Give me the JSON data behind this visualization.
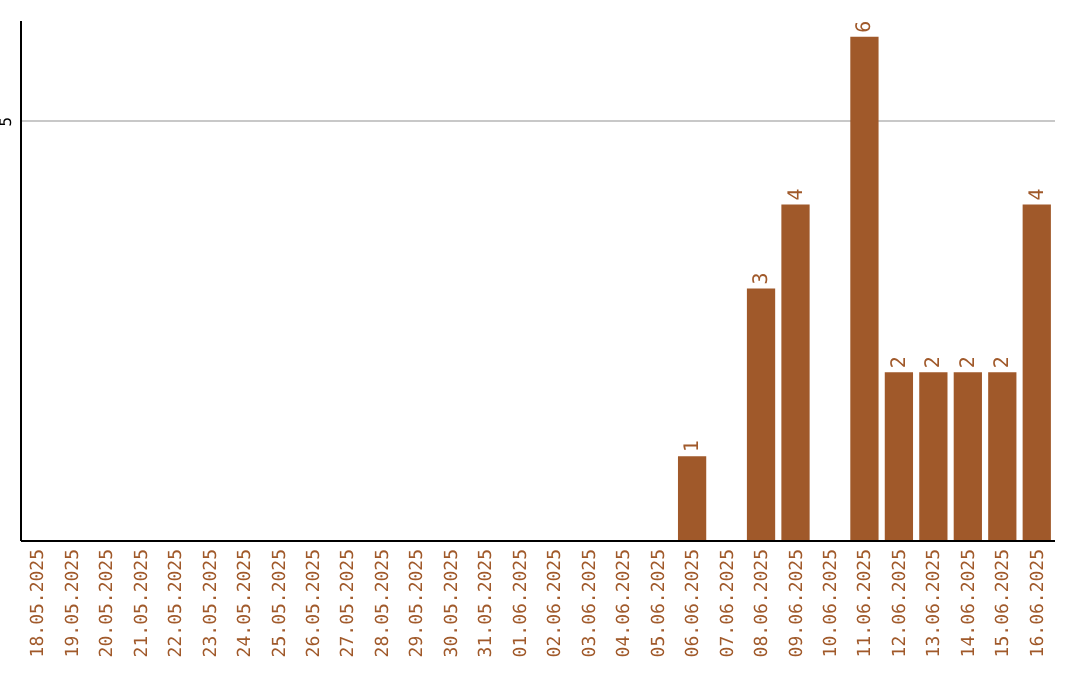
{
  "chart_data": {
    "type": "bar",
    "categories": [
      "18.05.2025",
      "19.05.2025",
      "20.05.2025",
      "21.05.2025",
      "22.05.2025",
      "23.05.2025",
      "24.05.2025",
      "25.05.2025",
      "26.05.2025",
      "27.05.2025",
      "28.05.2025",
      "29.05.2025",
      "30.05.2025",
      "31.05.2025",
      "01.06.2025",
      "02.06.2025",
      "03.06.2025",
      "04.06.2025",
      "05.06.2025",
      "06.06.2025",
      "07.06.2025",
      "08.06.2025",
      "09.06.2025",
      "10.06.2025",
      "11.06.2025",
      "12.06.2025",
      "13.06.2025",
      "14.06.2025",
      "15.06.2025",
      "16.06.2025"
    ],
    "values": [
      null,
      null,
      null,
      null,
      null,
      null,
      null,
      null,
      null,
      null,
      null,
      null,
      null,
      null,
      null,
      null,
      null,
      null,
      null,
      1,
      null,
      3,
      4,
      null,
      6,
      2,
      2,
      2,
      2,
      4
    ],
    "color": "#a0592a",
    "ylim": [
      0,
      6.2
    ],
    "yticks": [
      5
    ],
    "grid": "y",
    "data_labels": true
  }
}
